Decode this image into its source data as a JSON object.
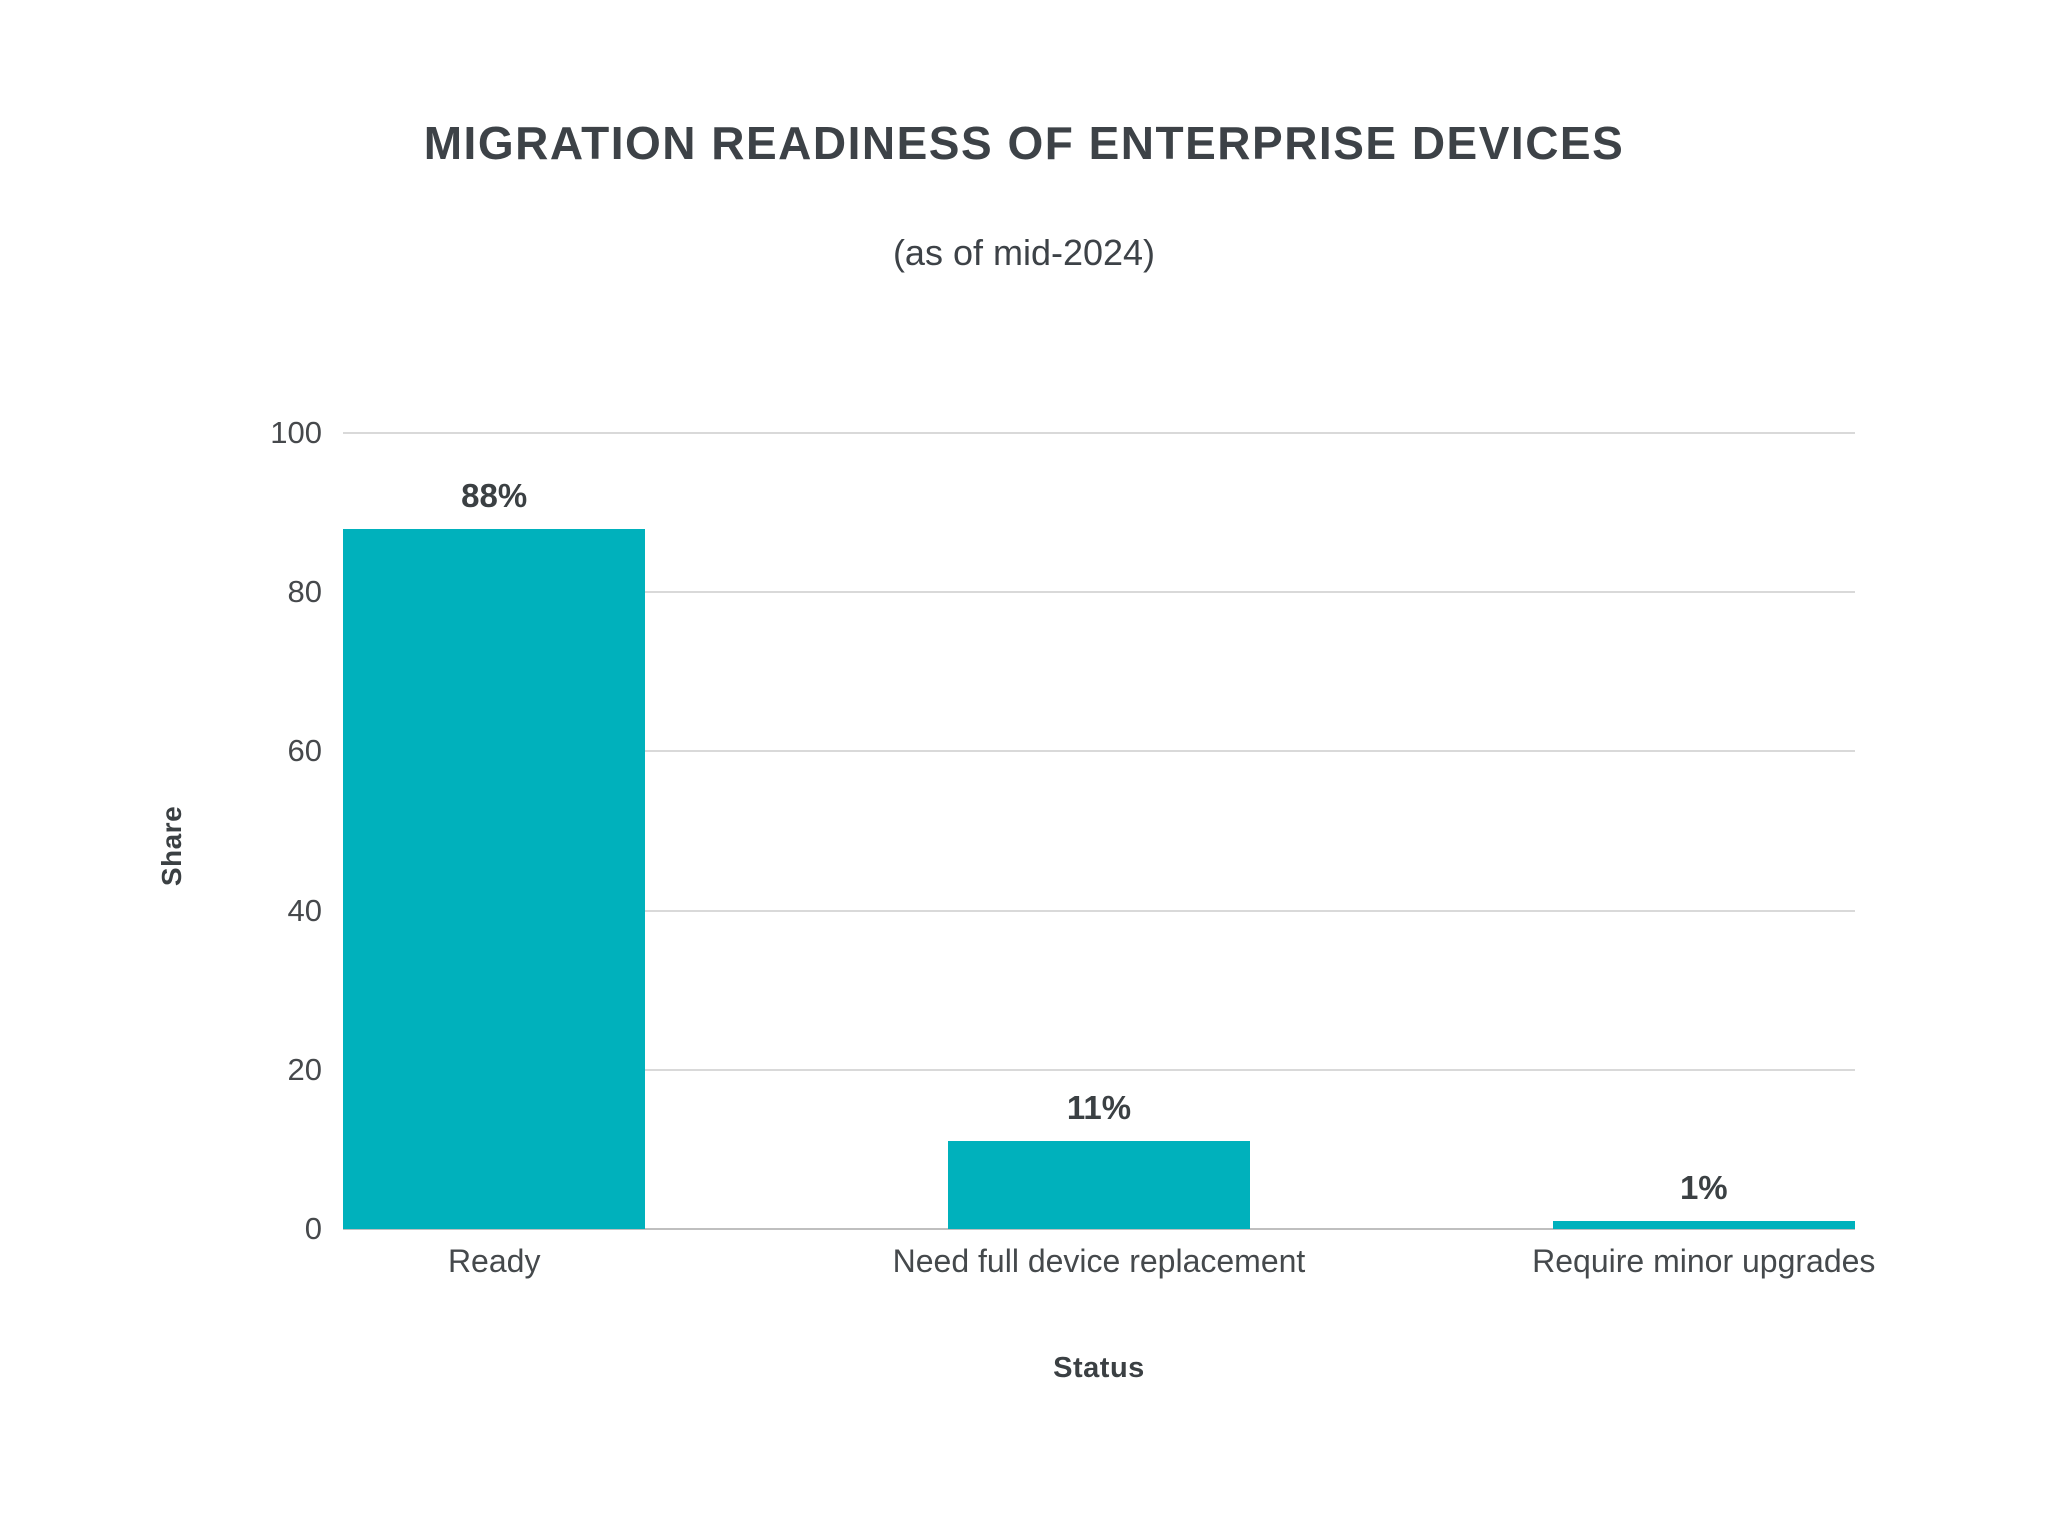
{
  "chart_data": {
    "type": "bar",
    "title": "MIGRATION READINESS OF ENTERPRISE DEVICES",
    "subtitle": "(as of mid-2024)",
    "categories": [
      "Ready",
      "Need full device replacement",
      "Require minor upgrades"
    ],
    "values": [
      88,
      11,
      1
    ],
    "value_labels": [
      "88%",
      "11%",
      "1%"
    ],
    "xlabel": "Status",
    "ylabel": "Share",
    "ylim": [
      0,
      100
    ],
    "yticks": [
      0,
      20,
      40,
      60,
      80,
      100
    ],
    "grid": "horizontal",
    "legend": "none",
    "bar_color": "#00b1bc"
  },
  "colors": {
    "accent": "#00b1bc",
    "title_text": "#3d4247",
    "tick_text": "#46494c",
    "label_text": "#45494c",
    "value_text": "#3b4043",
    "gridline": "#d9d9d9",
    "baseline": "#bfbfbf",
    "background": "#ffffff"
  }
}
